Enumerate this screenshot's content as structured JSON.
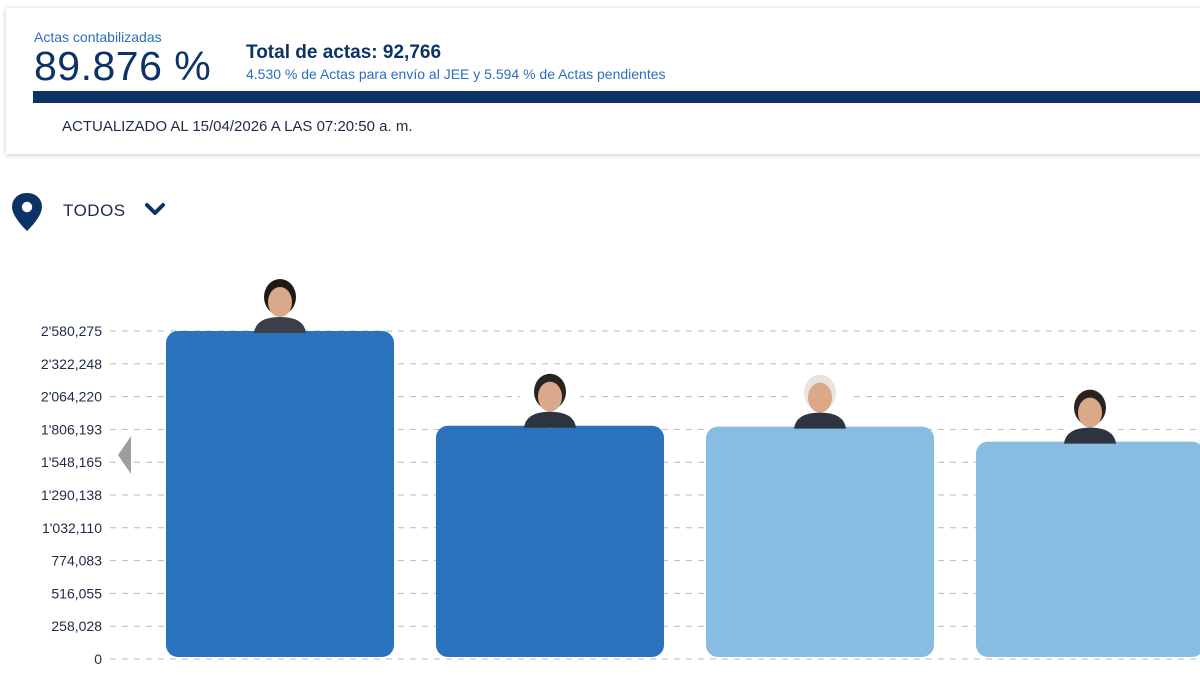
{
  "summary": {
    "actas_label": "Actas contabilizadas",
    "actas_percent": "89.876 %",
    "actas_progress": 1.0,
    "total_actas": "Total de actas: 92,766",
    "detail": "4.530 % de Actas para envío al JEE y 5.594 % de Actas pendientes",
    "updated": "ACTUALIZADO AL 15/04/2026 A LAS 07:20:50 a. m."
  },
  "filter": {
    "label": "TODOS",
    "location_icon": "map-pin-icon",
    "dropdown_icon": "chevron-down-icon"
  },
  "colors": {
    "navy": "#0d3366",
    "bar_dark": "#2a72bb",
    "bar_light": "#87bde3"
  },
  "chart_data": {
    "type": "bar",
    "categories": [
      "",
      "",
      "",
      ""
    ],
    "values": [
      2580275,
      1835000,
      1828000,
      1710000
    ],
    "bar_colors": [
      "#2a72bb",
      "#2a72bb",
      "#87bde3",
      "#87bde3"
    ],
    "ylim": [
      0,
      2580275
    ],
    "yticks": [
      0,
      258028,
      516055,
      774083,
      1032110,
      1290138,
      1548165,
      1806193,
      2064220,
      2322248,
      2580275
    ],
    "ytick_labels": [
      "0",
      "258,028",
      "516,055",
      "774,083",
      "1'032,110",
      "1'290,138",
      "1'548,165",
      "1'806,193",
      "2'064,220",
      "2'322,248",
      "2'580,275"
    ],
    "grid": true,
    "legend": "none",
    "candidate_icons": [
      "candidate-photo-icon",
      "candidate-photo-icon",
      "candidate-photo-icon",
      "candidate-photo-icon"
    ]
  }
}
